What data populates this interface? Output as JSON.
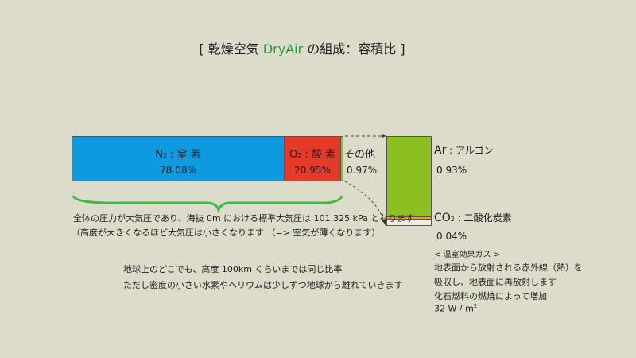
{
  "title": {
    "open": "[ 乾燥空気 ",
    "brand": "DryAir",
    "rest": " の組成：容積比 ]"
  },
  "colors": {
    "n2": "#0f9ae0",
    "o2": "#e43a2a",
    "ar": "#8cc021",
    "co2": "#f0a000",
    "brace": "#3db84a",
    "brand": "#2a9a3a"
  },
  "n2": {
    "formula": "N",
    "sub": "2",
    "name": " : 窒 素",
    "value": "78.08%",
    "percent": 78.08
  },
  "o2": {
    "formula": "O",
    "sub": "2",
    "name": " : 酸 素",
    "value": "20.95%",
    "percent": 20.95
  },
  "other": {
    "name": "その他",
    "value": "0.97%",
    "percent": 0.97
  },
  "ar": {
    "formula": "Ar",
    "name": " : アルゴン",
    "value": "0.93%",
    "percent": 0.93
  },
  "co2": {
    "formula": "CO",
    "sub": "2",
    "name": " : 二酸化炭素",
    "value": "0.04%",
    "percent": 0.04
  },
  "pressure_note": [
    "全体の圧力が大気圧であり、海抜 0m における標準大気圧は 101.325 kPa となります",
    "（高度が大きくなるほど大気圧は小さくなります （=> 空気が薄くなります）"
  ],
  "altitude_note": [
    "地球上のどこでも、高度 100km くらいまでは同じ比率",
    "ただし密度の小さい水素やヘリウムは少しずつ地球から離れていきます"
  ],
  "greenhouse": {
    "heading": "< 温室効果ガス >",
    "lines": [
      "地表面から放射される赤外線（熱）を",
      "吸収し、地表面に再放射します",
      "化石燃料の燃焼によって増加"
    ],
    "forcing": "32 W / m",
    "forcing_sup": "2"
  }
}
